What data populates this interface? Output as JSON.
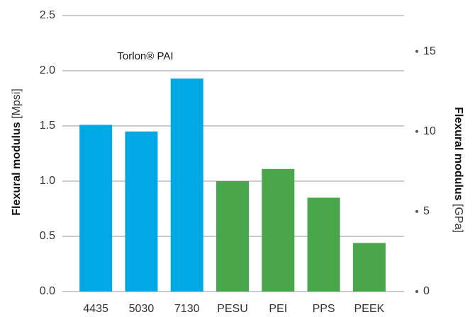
{
  "chart_data": {
    "type": "bar",
    "annotation": "Torlon® PAI",
    "ylabel": {
      "main": "Flexural modulus",
      "unit": "[Mpsi]"
    },
    "y2label": {
      "main": "Flexural modulus",
      "unit": "[GPa]"
    },
    "categories": [
      "4435",
      "5030",
      "7130",
      "PESU",
      "PEI",
      "PPS",
      "PEEK"
    ],
    "values": [
      1.51,
      1.45,
      1.93,
      1.0,
      1.11,
      0.85,
      0.44
    ],
    "colors": [
      "#00a9e6",
      "#00a9e6",
      "#00a9e6",
      "#4aa64b",
      "#4aa64b",
      "#4aa64b",
      "#4aa64b"
    ],
    "ylim": [
      0,
      2.5
    ],
    "yticks": [
      {
        "value": 0,
        "label": "0.0"
      },
      0.5,
      {
        "value": 1,
        "label": "1.0"
      },
      1.5,
      {
        "value": 2,
        "label": "2.0"
      },
      2.5
    ],
    "y2lim": [
      0,
      17.237
    ],
    "y2ticks": [
      0,
      5,
      10,
      15
    ],
    "grid": true
  }
}
